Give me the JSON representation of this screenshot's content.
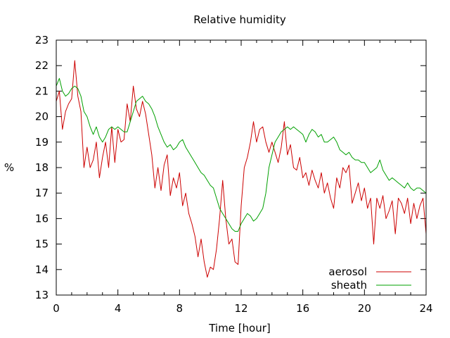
{
  "chart_data": {
    "type": "line",
    "title": "Relative humidity",
    "xlabel": "Time [hour]",
    "ylabel": "%",
    "xlim": [
      0,
      24
    ],
    "ylim": [
      13,
      23
    ],
    "x_ticks": [
      "0",
      "4",
      "8",
      "12",
      "16",
      "20",
      "24"
    ],
    "y_ticks": [
      "13",
      "14",
      "15",
      "16",
      "17",
      "18",
      "19",
      "20",
      "21",
      "22",
      "23"
    ],
    "grid": false,
    "legend_position": "bottom-right",
    "series": [
      {
        "name": "aerosol",
        "color": "#cc0000",
        "x": [
          0,
          0.2,
          0.4,
          0.6,
          0.8,
          1.0,
          1.2,
          1.4,
          1.6,
          1.8,
          2.0,
          2.2,
          2.4,
          2.6,
          2.8,
          3.0,
          3.2,
          3.4,
          3.6,
          3.8,
          4.0,
          4.2,
          4.4,
          4.6,
          4.8,
          5.0,
          5.2,
          5.4,
          5.6,
          5.8,
          6.0,
          6.2,
          6.4,
          6.6,
          6.8,
          7.0,
          7.2,
          7.4,
          7.6,
          7.8,
          8.0,
          8.2,
          8.4,
          8.6,
          8.8,
          9.0,
          9.2,
          9.4,
          9.6,
          9.8,
          10.0,
          10.2,
          10.4,
          10.6,
          10.8,
          11.0,
          11.2,
          11.4,
          11.6,
          11.8,
          12.0,
          12.2,
          12.4,
          12.6,
          12.8,
          13.0,
          13.2,
          13.4,
          13.6,
          13.8,
          14.0,
          14.2,
          14.4,
          14.6,
          14.8,
          15.0,
          15.2,
          15.4,
          15.6,
          15.8,
          16.0,
          16.2,
          16.4,
          16.6,
          16.8,
          17.0,
          17.2,
          17.4,
          17.6,
          17.8,
          18.0,
          18.2,
          18.4,
          18.6,
          18.8,
          19.0,
          19.2,
          19.4,
          19.6,
          19.8,
          20.0,
          20.2,
          20.4,
          20.6,
          20.8,
          21.0,
          21.2,
          21.4,
          21.6,
          21.8,
          22.0,
          22.2,
          22.4,
          22.6,
          22.8,
          23.0,
          23.2,
          23.4,
          23.6,
          23.8,
          24.0
        ],
        "y": [
          20.6,
          21.0,
          19.5,
          20.2,
          20.5,
          20.7,
          22.2,
          20.8,
          20.2,
          18.0,
          18.8,
          18.0,
          18.3,
          19.0,
          17.6,
          18.4,
          19.0,
          18.0,
          19.6,
          18.2,
          19.5,
          19.0,
          19.1,
          20.5,
          19.8,
          21.2,
          20.3,
          20.0,
          20.6,
          20.1,
          19.3,
          18.5,
          17.2,
          18.0,
          17.1,
          18.1,
          18.5,
          16.9,
          17.6,
          17.2,
          17.8,
          16.5,
          17.0,
          16.2,
          15.8,
          15.3,
          14.5,
          15.2,
          14.3,
          13.7,
          14.1,
          14.0,
          14.8,
          16.0,
          17.5,
          16.0,
          15.0,
          15.2,
          14.3,
          14.2,
          16.5,
          18.0,
          18.4,
          19.0,
          19.8,
          19.0,
          19.5,
          19.6,
          19.0,
          18.6,
          19.0,
          18.6,
          18.2,
          18.8,
          19.8,
          18.5,
          18.9,
          18.0,
          17.9,
          18.4,
          17.6,
          17.8,
          17.3,
          17.9,
          17.5,
          17.2,
          17.8,
          17.0,
          17.4,
          16.8,
          16.4,
          17.6,
          17.2,
          18.0,
          17.8,
          18.1,
          16.6,
          17.0,
          17.4,
          16.7,
          17.2,
          16.4,
          16.8,
          15.0,
          16.8,
          16.4,
          16.9,
          16.0,
          16.3,
          16.7,
          15.4,
          16.8,
          16.6,
          16.2,
          16.8,
          15.8,
          16.6,
          16.0,
          16.5,
          16.8,
          15.4
        ]
      },
      {
        "name": "sheath",
        "color": "#00a000",
        "x": [
          0,
          0.2,
          0.4,
          0.6,
          0.8,
          1.0,
          1.2,
          1.4,
          1.6,
          1.8,
          2.0,
          2.2,
          2.4,
          2.6,
          2.8,
          3.0,
          3.2,
          3.4,
          3.6,
          3.8,
          4.0,
          4.2,
          4.4,
          4.6,
          4.8,
          5.0,
          5.2,
          5.4,
          5.6,
          5.8,
          6.0,
          6.2,
          6.4,
          6.6,
          6.8,
          7.0,
          7.2,
          7.4,
          7.6,
          7.8,
          8.0,
          8.2,
          8.4,
          8.6,
          8.8,
          9.0,
          9.2,
          9.4,
          9.6,
          9.8,
          10.0,
          10.2,
          10.4,
          10.6,
          10.8,
          11.0,
          11.2,
          11.4,
          11.6,
          11.8,
          12.0,
          12.2,
          12.4,
          12.6,
          12.8,
          13.0,
          13.2,
          13.4,
          13.6,
          13.8,
          14.0,
          14.2,
          14.4,
          14.6,
          14.8,
          15.0,
          15.2,
          15.4,
          15.6,
          15.8,
          16.0,
          16.2,
          16.4,
          16.6,
          16.8,
          17.0,
          17.2,
          17.4,
          17.6,
          17.8,
          18.0,
          18.2,
          18.4,
          18.6,
          18.8,
          19.0,
          19.2,
          19.4,
          19.6,
          19.8,
          20.0,
          20.2,
          20.4,
          20.6,
          20.8,
          21.0,
          21.2,
          21.4,
          21.6,
          21.8,
          22.0,
          22.2,
          22.4,
          22.6,
          22.8,
          23.0,
          23.2,
          23.4,
          23.6,
          23.8,
          24.0
        ],
        "y": [
          21.2,
          21.5,
          21.0,
          20.8,
          20.9,
          21.1,
          21.2,
          21.1,
          20.8,
          20.2,
          20.0,
          19.6,
          19.3,
          19.6,
          19.2,
          19.0,
          19.2,
          19.5,
          19.6,
          19.5,
          19.6,
          19.5,
          19.4,
          19.4,
          19.8,
          20.2,
          20.6,
          20.7,
          20.8,
          20.6,
          20.5,
          20.3,
          20.0,
          19.6,
          19.3,
          19.0,
          18.8,
          18.9,
          18.7,
          18.8,
          19.0,
          19.1,
          18.8,
          18.6,
          18.4,
          18.2,
          18.0,
          17.8,
          17.7,
          17.5,
          17.3,
          17.2,
          16.8,
          16.4,
          16.2,
          16.0,
          15.8,
          15.6,
          15.5,
          15.5,
          15.8,
          16.0,
          16.2,
          16.1,
          15.9,
          16.0,
          16.2,
          16.4,
          17.0,
          18.0,
          18.5,
          19.0,
          19.2,
          19.4,
          19.5,
          19.6,
          19.5,
          19.6,
          19.5,
          19.4,
          19.3,
          19.0,
          19.3,
          19.5,
          19.4,
          19.2,
          19.3,
          19.0,
          19.0,
          19.1,
          19.2,
          19.0,
          18.7,
          18.6,
          18.5,
          18.6,
          18.4,
          18.3,
          18.3,
          18.2,
          18.2,
          18.0,
          17.8,
          17.9,
          18.0,
          18.3,
          17.9,
          17.7,
          17.5,
          17.6,
          17.5,
          17.4,
          17.3,
          17.2,
          17.4,
          17.2,
          17.1,
          17.2,
          17.2,
          17.1,
          17.0
        ]
      }
    ]
  }
}
